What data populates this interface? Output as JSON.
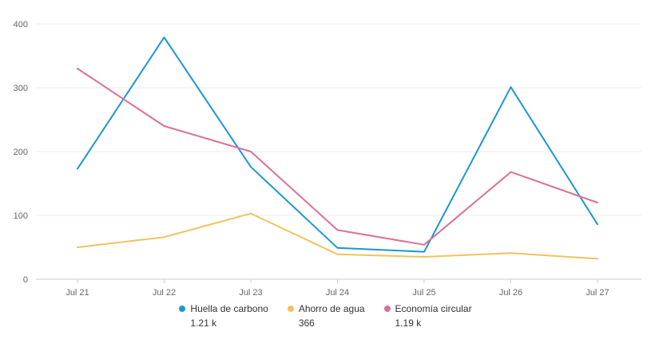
{
  "chart_data": {
    "type": "line",
    "categories": [
      "Jul 21",
      "Jul 22",
      "Jul 23",
      "Jul 24",
      "Jul 25",
      "Jul 26",
      "Jul 27"
    ],
    "ylim": [
      0,
      400
    ],
    "yticks": [
      0,
      100,
      200,
      300,
      400
    ],
    "grid": true,
    "legend_position": "bottom",
    "series": [
      {
        "name": "Huella de carbono",
        "color": "#1b97d2",
        "total": "1.21 k",
        "values": [
          173,
          379,
          176,
          49,
          43,
          301,
          86
        ]
      },
      {
        "name": "Ahorro de agua",
        "color": "#f0c35f",
        "total": "366",
        "values": [
          50,
          66,
          103,
          39,
          35,
          41,
          32
        ]
      },
      {
        "name": "Economía circular",
        "color": "#de6f98",
        "total": "1.19 k",
        "values": [
          330,
          240,
          200,
          77,
          54,
          168,
          120
        ]
      }
    ]
  }
}
